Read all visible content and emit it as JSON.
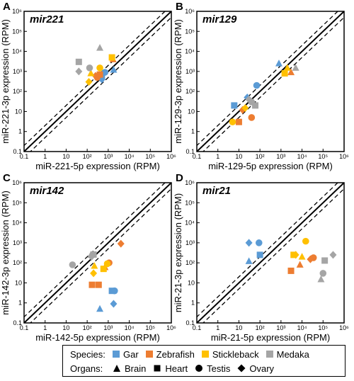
{
  "colors": {
    "Gar": "#5B9BD5",
    "Zebrafish": "#ED7D31",
    "Stickleback": "#FFC000",
    "Medaka": "#A5A5A5",
    "axis": "#000000"
  },
  "legend": {
    "species_title": "Species:",
    "species": [
      "Gar",
      "Zebrafish",
      "Stickleback",
      "Medaka"
    ],
    "organs_title": "Organs:",
    "organs": [
      "Brain",
      "Heart",
      "Testis",
      "Ovary"
    ]
  },
  "tick_labels": [
    "0.1",
    "1",
    "10",
    "10²",
    "10³",
    "10⁴",
    "10⁵",
    "10⁶"
  ],
  "chart_data": [
    {
      "type": "scatter",
      "panel_letter": "A",
      "title": "mir221",
      "xlabel": "miR-221-5p expression (RPM)",
      "ylabel": "miR-221-3p expression (RPM)",
      "xlim": [
        0.1,
        1000000
      ],
      "ylim": [
        0.1,
        1000000
      ],
      "log_scale": true,
      "reference_lines": [
        "y = x (solid)",
        "y = 2x, y = x/2 (dashed)"
      ],
      "points": [
        {
          "species": "Gar",
          "organ": "Brain",
          "x": 1800,
          "y": 1200
        },
        {
          "species": "Gar",
          "organ": "Heart",
          "x": 500,
          "y": 600
        },
        {
          "species": "Gar",
          "organ": "Testis",
          "x": 700,
          "y": 900
        },
        {
          "species": "Gar",
          "organ": "Ovary",
          "x": 500,
          "y": 400
        },
        {
          "species": "Zebrafish",
          "organ": "Brain",
          "x": 1700,
          "y": 4000
        },
        {
          "species": "Zebrafish",
          "organ": "Heart",
          "x": 400,
          "y": 700
        },
        {
          "species": "Zebrafish",
          "organ": "Testis",
          "x": 300,
          "y": 500
        },
        {
          "species": "Zebrafish",
          "organ": "Ovary",
          "x": 250,
          "y": 600
        },
        {
          "species": "Stickleback",
          "organ": "Brain",
          "x": 150,
          "y": 800
        },
        {
          "species": "Stickleback",
          "organ": "Heart",
          "x": 1500,
          "y": 5000
        },
        {
          "species": "Stickleback",
          "organ": "Testis",
          "x": 400,
          "y": 1500
        },
        {
          "species": "Stickleback",
          "organ": "Ovary",
          "x": 120,
          "y": 300
        },
        {
          "species": "Medaka",
          "organ": "Brain",
          "x": 400,
          "y": 15000
        },
        {
          "species": "Medaka",
          "organ": "Heart",
          "x": 40,
          "y": 3000
        },
        {
          "species": "Medaka",
          "organ": "Testis",
          "x": 130,
          "y": 1500
        },
        {
          "species": "Medaka",
          "organ": "Ovary",
          "x": 40,
          "y": 1000
        }
      ]
    },
    {
      "type": "scatter",
      "panel_letter": "B",
      "title": "mir129",
      "xlabel": "miR-129-5p expression (RPM)",
      "ylabel": "miR-129-3p expression (RPM)",
      "xlim": [
        0.1,
        1000000
      ],
      "ylim": [
        0.1,
        1000000
      ],
      "log_scale": true,
      "reference_lines": [
        "y = x (solid)",
        "y = 2x, y = x/2 (dashed)"
      ],
      "points": [
        {
          "species": "Gar",
          "organ": "Brain",
          "x": 800,
          "y": 2500
        },
        {
          "species": "Gar",
          "organ": "Heart",
          "x": 6,
          "y": 20
        },
        {
          "species": "Gar",
          "organ": "Testis",
          "x": 70,
          "y": 200
        },
        {
          "species": "Gar",
          "organ": "Ovary",
          "x": 25,
          "y": 50
        },
        {
          "species": "Zebrafish",
          "organ": "Brain",
          "x": 3000,
          "y": 900
        },
        {
          "species": "Zebrafish",
          "organ": "Heart",
          "x": 10,
          "y": 3
        },
        {
          "species": "Zebrafish",
          "organ": "Testis",
          "x": 40,
          "y": 5
        },
        {
          "species": "Zebrafish",
          "organ": "Ovary",
          "x": 15,
          "y": 12
        },
        {
          "species": "Stickleback",
          "organ": "Brain",
          "x": 2000,
          "y": 1500
        },
        {
          "species": "Stickleback",
          "organ": "Heart",
          "x": 1500,
          "y": 800
        },
        {
          "species": "Stickleback",
          "organ": "Testis",
          "x": 5,
          "y": 3
        },
        {
          "species": "Stickleback",
          "organ": "Ovary",
          "x": 20,
          "y": 15
        },
        {
          "species": "Medaka",
          "organ": "Brain",
          "x": 5000,
          "y": 1500
        },
        {
          "species": "Medaka",
          "organ": "Heart",
          "x": 60,
          "y": 20
        },
        {
          "species": "Medaka",
          "organ": "Testis",
          "x": 40,
          "y": 30
        },
        {
          "species": "Medaka",
          "organ": "Ovary",
          "x": 30,
          "y": 40
        }
      ]
    },
    {
      "type": "scatter",
      "panel_letter": "C",
      "title": "mir142",
      "xlabel": "miR-142-5p expression (RPM)",
      "ylabel": "miR-142-3p expression (RPM)",
      "xlim": [
        0.1,
        1000000
      ],
      "ylim": [
        0.1,
        1000000
      ],
      "log_scale": true,
      "reference_lines": [
        "y = x (solid)",
        "y = 2x, y = x/2 (dashed)"
      ],
      "points": [
        {
          "species": "Gar",
          "organ": "Brain",
          "x": 400,
          "y": 0.5
        },
        {
          "species": "Gar",
          "organ": "Heart",
          "x": 1500,
          "y": 4
        },
        {
          "species": "Gar",
          "organ": "Testis",
          "x": 2000,
          "y": 4
        },
        {
          "species": "Gar",
          "organ": "Ovary",
          "x": 1800,
          "y": 0.9
        },
        {
          "species": "Zebrafish",
          "organ": "Brain",
          "x": 700,
          "y": 60
        },
        {
          "species": "Zebrafish",
          "organ": "Heart",
          "x": 170,
          "y": 8
        },
        {
          "species": "Zebrafish",
          "organ": "Testis",
          "x": 1100,
          "y": 100
        },
        {
          "species": "Zebrafish",
          "organ": "Ovary",
          "x": 4000,
          "y": 900
        },
        {
          "species": "Zebrafish",
          "organ": "Heart",
          "x": 350,
          "y": 8
        },
        {
          "species": "Stickleback",
          "organ": "Brain",
          "x": 220,
          "y": 70
        },
        {
          "species": "Stickleback",
          "organ": "Heart",
          "x": 600,
          "y": 50
        },
        {
          "species": "Stickleback",
          "organ": "Testis",
          "x": 900,
          "y": 90
        },
        {
          "species": "Stickleback",
          "organ": "Ovary",
          "x": 200,
          "y": 30
        },
        {
          "species": "Medaka",
          "organ": "Brain",
          "x": 150,
          "y": 250
        },
        {
          "species": "Medaka",
          "organ": "Heart",
          "x": 200,
          "y": 260
        },
        {
          "species": "Medaka",
          "organ": "Testis",
          "x": 20,
          "y": 80
        },
        {
          "species": "Medaka",
          "organ": "Ovary",
          "x": 160,
          "y": 200
        }
      ]
    },
    {
      "type": "scatter",
      "panel_letter": "D",
      "title": "mir21",
      "xlabel": "miR-21-5p expression (RPM)",
      "ylabel": "miR-21-3p expression (RPM)",
      "xlim": [
        0.1,
        1000000
      ],
      "ylim": [
        0.1,
        1000000
      ],
      "log_scale": true,
      "reference_lines": [
        "y = x (solid)",
        "y = 2x, y = x/2 (dashed)"
      ],
      "points": [
        {
          "species": "Gar",
          "organ": "Brain",
          "x": 30,
          "y": 120
        },
        {
          "species": "Gar",
          "organ": "Heart",
          "x": 100,
          "y": 250
        },
        {
          "species": "Gar",
          "organ": "Testis",
          "x": 90,
          "y": 1000
        },
        {
          "species": "Gar",
          "organ": "Ovary",
          "x": 30,
          "y": 1000
        },
        {
          "species": "Zebrafish",
          "organ": "Brain",
          "x": 8000,
          "y": 80
        },
        {
          "species": "Zebrafish",
          "organ": "Heart",
          "x": 3000,
          "y": 40
        },
        {
          "species": "Zebrafish",
          "organ": "Testis",
          "x": 35000,
          "y": 180
        },
        {
          "species": "Zebrafish",
          "organ": "Ovary",
          "x": 25000,
          "y": 150
        },
        {
          "species": "Stickleback",
          "organ": "Brain",
          "x": 10000,
          "y": 200
        },
        {
          "species": "Stickleback",
          "organ": "Heart",
          "x": 4000,
          "y": 250
        },
        {
          "species": "Stickleback",
          "organ": "Testis",
          "x": 15000,
          "y": 1200
        },
        {
          "species": "Stickleback",
          "organ": "Ovary",
          "x": 5000,
          "y": 250
        },
        {
          "species": "Medaka",
          "organ": "Brain",
          "x": 80000,
          "y": 15
        },
        {
          "species": "Medaka",
          "organ": "Heart",
          "x": 120000,
          "y": 130
        },
        {
          "species": "Medaka",
          "organ": "Testis",
          "x": 100000,
          "y": 30
        },
        {
          "species": "Medaka",
          "organ": "Ovary",
          "x": 300000,
          "y": 250
        }
      ]
    }
  ]
}
